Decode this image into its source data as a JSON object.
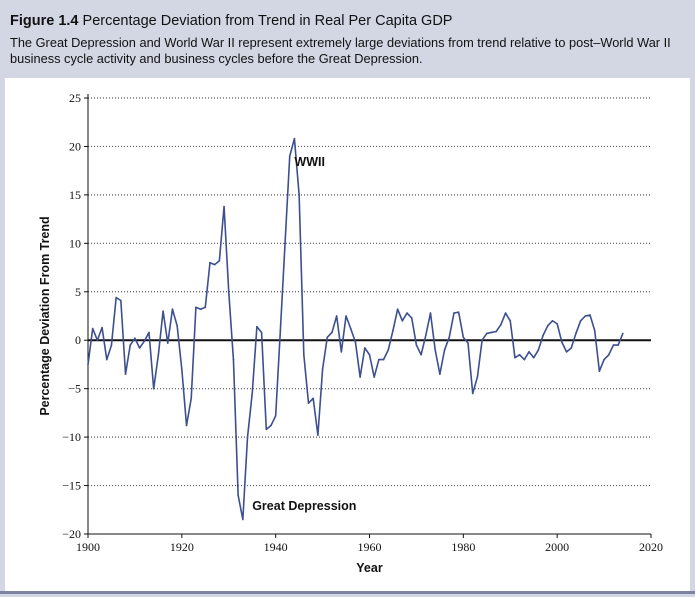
{
  "figure": {
    "number": "Figure 1.4",
    "title": "Percentage Deviation from Trend in Real Per Capita GDP",
    "caption": "The Great Depression and World War II represent extremely large deviations from trend relative to post–World War II business cycle activity and business cycles before the Great Depression."
  },
  "colors": {
    "line": "#3c4f8f",
    "zero_line": "#111111",
    "grid": "#555555",
    "background": "#d3d7e4"
  },
  "chart_data": {
    "type": "line",
    "title": "Percentage Deviation from Trend in Real Per Capita GDP",
    "xlabel": "Year",
    "ylabel": "Percentage Deviation From Trend",
    "xlim": [
      1900,
      2020
    ],
    "ylim": [
      -20,
      25
    ],
    "x_ticks": [
      1900,
      1920,
      1940,
      1960,
      1980,
      2000,
      2020
    ],
    "x_tick_labels": [
      "1900",
      "1920",
      "1940",
      "1960",
      "1980",
      "2000",
      "2020"
    ],
    "y_ticks": [
      25,
      20,
      15,
      10,
      5,
      0,
      -5,
      -10,
      -15,
      -20
    ],
    "y_tick_labels": [
      "25",
      "20",
      "15",
      "10",
      "5",
      "0",
      "−5",
      "−10",
      "−15",
      "−20"
    ],
    "grid": "horizontal-dotted",
    "series": [
      {
        "name": "Percentage deviation from trend",
        "x": [
          1900,
          1901,
          1902,
          1903,
          1904,
          1905,
          1906,
          1907,
          1908,
          1909,
          1910,
          1911,
          1912,
          1913,
          1914,
          1915,
          1916,
          1917,
          1918,
          1919,
          1920,
          1921,
          1922,
          1923,
          1924,
          1925,
          1926,
          1927,
          1928,
          1929,
          1930,
          1931,
          1932,
          1933,
          1934,
          1935,
          1936,
          1937,
          1938,
          1939,
          1940,
          1941,
          1942,
          1943,
          1944,
          1945,
          1946,
          1947,
          1948,
          1949,
          1950,
          1951,
          1952,
          1953,
          1954,
          1955,
          1956,
          1957,
          1958,
          1959,
          1960,
          1961,
          1962,
          1963,
          1964,
          1965,
          1966,
          1967,
          1968,
          1969,
          1970,
          1971,
          1972,
          1973,
          1974,
          1975,
          1976,
          1977,
          1978,
          1979,
          1980,
          1981,
          1982,
          1983,
          1984,
          1985,
          1986,
          1987,
          1988,
          1989,
          1990,
          1991,
          1992,
          1993,
          1994,
          1995,
          1996,
          1997,
          1998,
          1999,
          2000,
          2001,
          2002,
          2003,
          2004,
          2005,
          2006,
          2007,
          2008,
          2009,
          2010,
          2011,
          2012,
          2013,
          2014
        ],
        "y": [
          -2.5,
          1.2,
          0.0,
          1.3,
          -2.0,
          -0.5,
          4.4,
          4.1,
          -3.5,
          -0.5,
          0.2,
          -0.8,
          -0.1,
          0.8,
          -5.0,
          -1.5,
          3.0,
          -0.3,
          3.2,
          1.5,
          -3.0,
          -8.8,
          -6.0,
          3.4,
          3.2,
          3.4,
          8.0,
          7.8,
          8.2,
          13.8,
          5.0,
          -2.0,
          -16.0,
          -18.5,
          -10.0,
          -5.5,
          1.4,
          0.8,
          -9.2,
          -8.8,
          -7.8,
          1.0,
          10.0,
          19.0,
          20.8,
          15.0,
          -1.5,
          -6.5,
          -6.0,
          -9.8,
          -3.0,
          0.3,
          0.8,
          2.5,
          -1.2,
          2.5,
          1.2,
          -0.2,
          -3.8,
          -0.8,
          -1.5,
          -3.8,
          -2.0,
          -2.0,
          -1.0,
          1.0,
          3.2,
          2.0,
          2.8,
          2.3,
          -0.5,
          -1.5,
          0.5,
          2.8,
          -1.0,
          -3.5,
          -1.0,
          0.3,
          2.8,
          2.9,
          0.3,
          -0.3,
          -5.5,
          -3.8,
          0.0,
          0.7,
          0.8,
          0.9,
          1.6,
          2.8,
          2.0,
          -1.8,
          -1.5,
          -2.0,
          -1.2,
          -1.8,
          -1.0,
          0.5,
          1.5,
          2.0,
          1.7,
          -0.2,
          -1.2,
          -0.8,
          0.7,
          2.0,
          2.5,
          2.6,
          1.0,
          -3.2,
          -2.0,
          -1.5,
          -0.5,
          -0.5,
          0.7
        ]
      }
    ],
    "annotations": [
      {
        "text": "WWII",
        "x": 1944,
        "y": 18
      },
      {
        "text": "Great Depression",
        "x": 1935,
        "y": -17.5
      }
    ]
  }
}
